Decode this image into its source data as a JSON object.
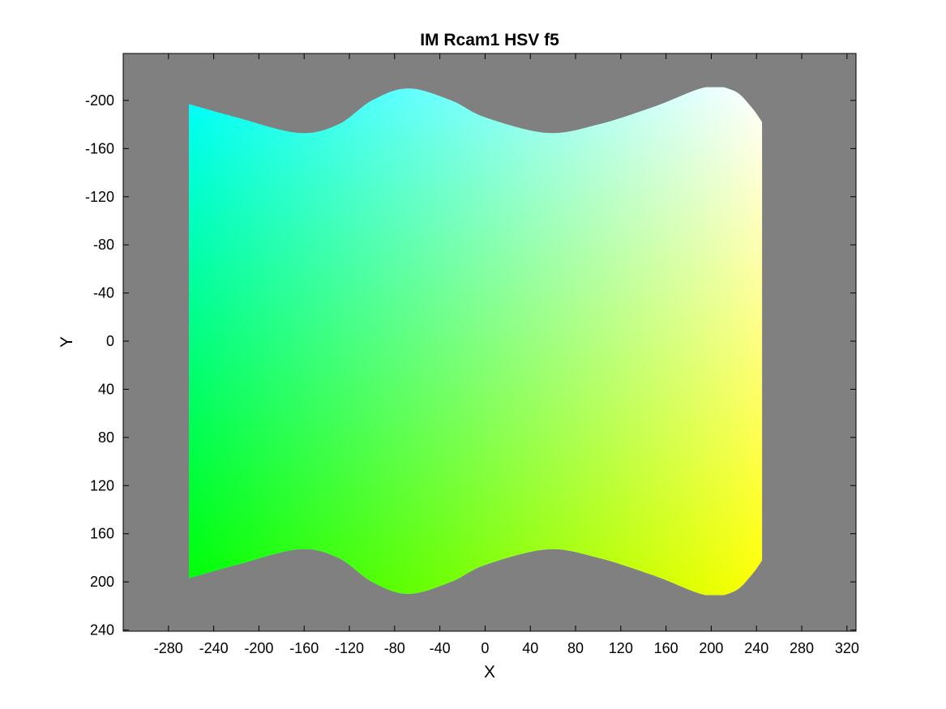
{
  "chart_data": {
    "type": "heatmap",
    "title": "IM Rcam1 HSV f5",
    "xlabel": "X",
    "ylabel": "Y",
    "xlim": [
      -320,
      328
    ],
    "ylim": [
      -239,
      241
    ],
    "y_axis_direction": "reversed",
    "x_ticks": [
      -280,
      -240,
      -200,
      -160,
      -120,
      -80,
      -40,
      0,
      40,
      80,
      120,
      160,
      200,
      240,
      280,
      320
    ],
    "y_ticks": [
      -200,
      -160,
      -120,
      -80,
      -40,
      0,
      40,
      80,
      120,
      160,
      200,
      240
    ],
    "x_tick_labels": [
      "-280",
      "-240",
      "-200",
      "-160",
      "-120",
      "-80",
      "-40",
      "0",
      "40",
      "80",
      "120",
      "160",
      "200",
      "240",
      "280",
      "320"
    ],
    "y_tick_labels": [
      "-200",
      "-160",
      "-120",
      "-80",
      "-40",
      "0",
      "40",
      "80",
      "120",
      "160",
      "200",
      "240"
    ],
    "background_color": "#808080",
    "region": {
      "x_range": [
        -262,
        245
      ],
      "left_edge_y": [
        -197,
        197
      ],
      "top_boundary": [
        [
          -262,
          -197
        ],
        [
          -220,
          -186
        ],
        [
          -165,
          -173
        ],
        [
          -130,
          -180
        ],
        [
          -100,
          -200
        ],
        [
          -68,
          -210
        ],
        [
          -30,
          -200
        ],
        [
          0,
          -186
        ],
        [
          55,
          -173
        ],
        [
          100,
          -180
        ],
        [
          150,
          -195
        ],
        [
          195,
          -211
        ],
        [
          220,
          -208
        ],
        [
          235,
          -195
        ],
        [
          245,
          -182
        ]
      ],
      "bottom_boundary": [
        [
          -262,
          197
        ],
        [
          -220,
          186
        ],
        [
          -165,
          173
        ],
        [
          -130,
          180
        ],
        [
          -100,
          200
        ],
        [
          -68,
          210
        ],
        [
          -30,
          200
        ],
        [
          0,
          186
        ],
        [
          55,
          173
        ],
        [
          100,
          180
        ],
        [
          150,
          195
        ],
        [
          195,
          211
        ],
        [
          220,
          208
        ],
        [
          235,
          195
        ],
        [
          245,
          182
        ]
      ]
    },
    "color_corners": {
      "top_left": "#00ffff",
      "top_right": "#ffffff",
      "bottom_left": "#00ff00",
      "bottom_right": "#ffff00"
    },
    "grid": false
  }
}
